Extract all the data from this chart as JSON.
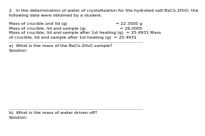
{
  "bg_color": "#ffffff",
  "text_color": "#000000",
  "title_line1": "2.  In the determination of water of crystallization for the hydrated salt BaCl₂.2H₂O, the",
  "title_line2": "following data were obtained by a student.",
  "row1_label": "Mass of crucible and lid (g)",
  "row1_value": "= 22.3505 g",
  "row2_label": "Mass of crucible, lid and sample (g)",
  "row2_value": "= 26.0005",
  "row3_label": "Mass of crucible, lid and sample after 1st heating (g)  = 25.4931 Mass",
  "row3_value": "",
  "row4_label": "of crucible, lid and sample after 1st heating (g)  = 25.4931",
  "row4_value": "",
  "question_a": "a)  What is the mass of the BaCl₂.2H₂O sample?",
  "solution_a": "Solution:",
  "question_b": "b)  What is the mass of water driven off?",
  "solution_b": "Solution:",
  "font_size": 4.8,
  "line_color": "#aaaaaa"
}
